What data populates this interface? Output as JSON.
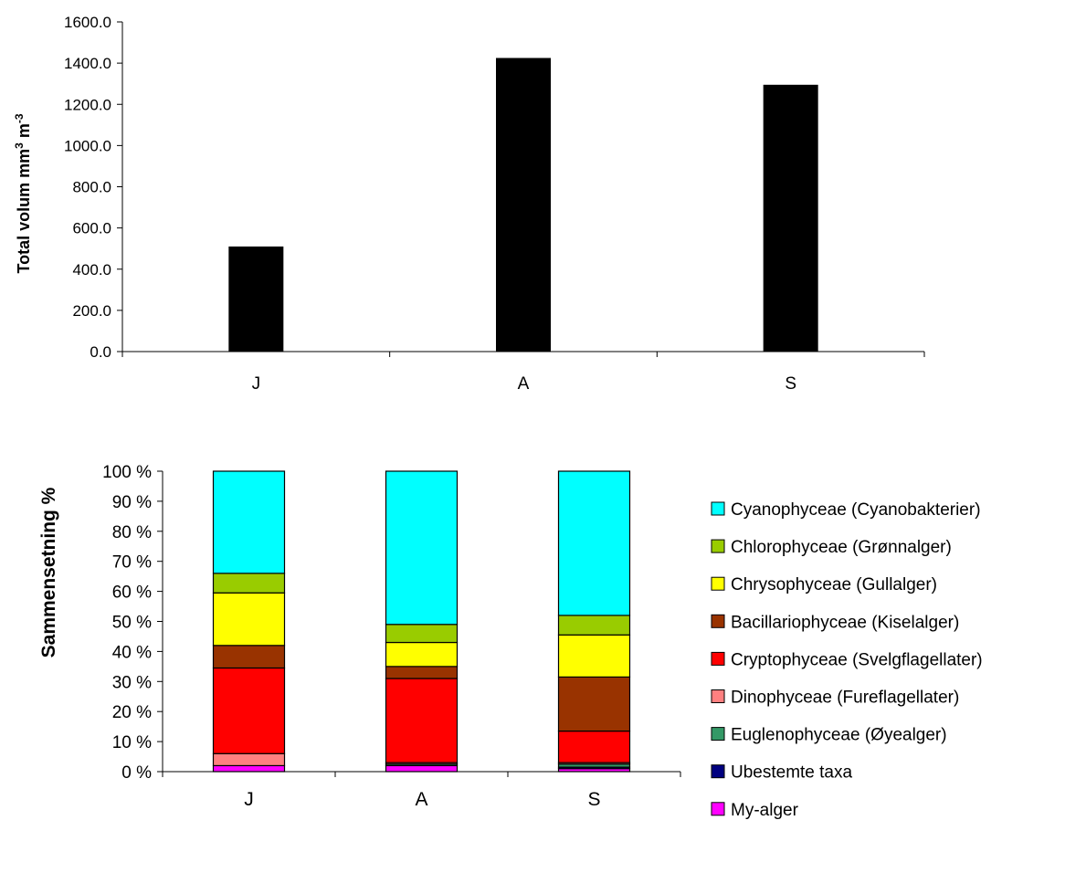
{
  "chart_data": [
    {
      "type": "bar",
      "title": "",
      "xlabel": "",
      "ylabel": "Total volum mm",
      "ylabel_sup1": "3",
      "ylabel_mid": " m",
      "ylabel_sup2": "-3",
      "categories": [
        "J",
        "A",
        "S"
      ],
      "values": [
        510,
        1425,
        1295
      ],
      "ylim": [
        0,
        1600
      ],
      "yticks": [
        "0.0",
        "200.0",
        "400.0",
        "600.0",
        "800.0",
        "1000.0",
        "1200.0",
        "1400.0",
        "1600.0"
      ],
      "color": "#000000",
      "grid": false
    },
    {
      "type": "bar",
      "stacked": true,
      "title": "",
      "xlabel": "",
      "ylabel": "Sammensetning %",
      "categories": [
        "J",
        "A",
        "S"
      ],
      "ylim": [
        0,
        100
      ],
      "yticks": [
        "0 %",
        "10 %",
        "20 %",
        "30 %",
        "40 %",
        "50 %",
        "60 %",
        "70 %",
        "80 %",
        "90 %",
        "100 %"
      ],
      "legend_position": "right",
      "grid": false,
      "series": [
        {
          "name": "My-alger",
          "color": "#FF00FF",
          "values": [
            2.0,
            2.0,
            1.0
          ]
        },
        {
          "name": "Ubestemte taxa",
          "color": "#000080",
          "values": [
            0.0,
            0.0,
            0.5
          ]
        },
        {
          "name": "Euglenophyceae (Øyealger)",
          "color": "#339966",
          "values": [
            0.0,
            0.5,
            1.0
          ]
        },
        {
          "name": "Dinophyceae (Fureflagellater)",
          "color": "#FF8080",
          "values": [
            4.0,
            0.5,
            0.5
          ]
        },
        {
          "name": "Cryptophyceae (Svelgflagellater)",
          "color": "#FF0000",
          "values": [
            28.5,
            28.0,
            10.5
          ]
        },
        {
          "name": "Bacillariophyceae (Kiselalger)",
          "color": "#993300",
          "values": [
            7.5,
            4.0,
            18.0
          ]
        },
        {
          "name": "Chrysophyceae (Gullalger)",
          "color": "#FFFF00",
          "values": [
            17.5,
            8.0,
            14.0
          ]
        },
        {
          "name": "Chlorophyceae (Grønnalger)",
          "color": "#99CC00",
          "values": [
            6.5,
            6.0,
            6.5
          ]
        },
        {
          "name": "Cyanophyceae (Cyanobakterier)",
          "color": "#00FFFF",
          "values": [
            34.0,
            51.0,
            48.0
          ]
        }
      ]
    }
  ]
}
